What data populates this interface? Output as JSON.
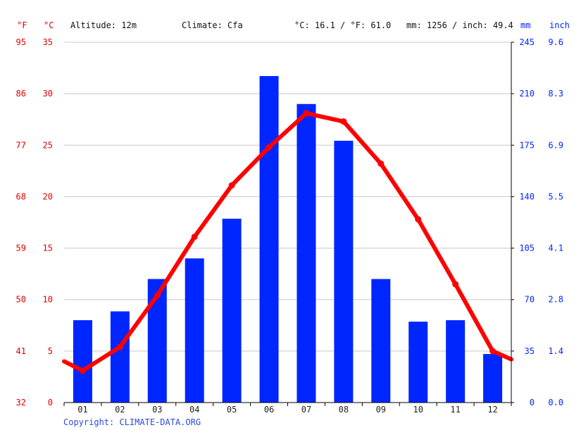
{
  "header": {
    "unit_f": "°F",
    "unit_c": "°C",
    "altitude": "Altitude: 12m",
    "climate": "Climate: Cfa",
    "avg_temp": "°C: 16.1 / °F: 61.0",
    "precip_total": "mm: 1256 / inch: 49.4",
    "unit_mm": "mm",
    "unit_inch": "inch"
  },
  "footer": {
    "copyright": "Copyright: CLIMATE-DATA.ORG"
  },
  "colors": {
    "temperature": "#ff0000",
    "precipitation": "#0026ff",
    "left_axis_labels": "#e00000",
    "right_axis_labels": "#0026ff"
  },
  "chart_data": {
    "type": "bar",
    "title": "",
    "categories": [
      "01",
      "02",
      "03",
      "04",
      "05",
      "06",
      "07",
      "08",
      "09",
      "10",
      "11",
      "12"
    ],
    "series": [
      {
        "name": "",
        "kind": "bar",
        "axis": "right",
        "unit": "mm",
        "values": [
          56,
          62,
          84,
          98,
          125,
          222,
          203,
          178,
          84,
          55,
          56,
          33
        ]
      },
      {
        "name": "",
        "kind": "line",
        "axis": "left",
        "unit": "°C",
        "values": [
          3.1,
          5.4,
          10.4,
          16.1,
          21.1,
          24.8,
          28.1,
          27.3,
          23.2,
          17.8,
          11.5,
          5.0
        ]
      }
    ],
    "temp_line_start_c": 4.0,
    "temp_line_end_c": 4.2,
    "y_left_c": {
      "lim": [
        0,
        35
      ],
      "ticks": [
        "0",
        "5",
        "10",
        "15",
        "20",
        "25",
        "30",
        "35"
      ]
    },
    "y_left_f": {
      "ticks": [
        "32",
        "41",
        "50",
        "59",
        "68",
        "77",
        "86",
        "95"
      ]
    },
    "y_right_mm": {
      "lim": [
        0,
        245
      ],
      "ticks": [
        "0",
        "35",
        "70",
        "105",
        "140",
        "175",
        "210",
        "245"
      ]
    },
    "y_right_inch": {
      "ticks": [
        "0.0",
        "1.4",
        "2.8",
        "4.1",
        "5.5",
        "6.9",
        "8.3",
        "9.6"
      ]
    },
    "grid": true,
    "legend": "none"
  }
}
